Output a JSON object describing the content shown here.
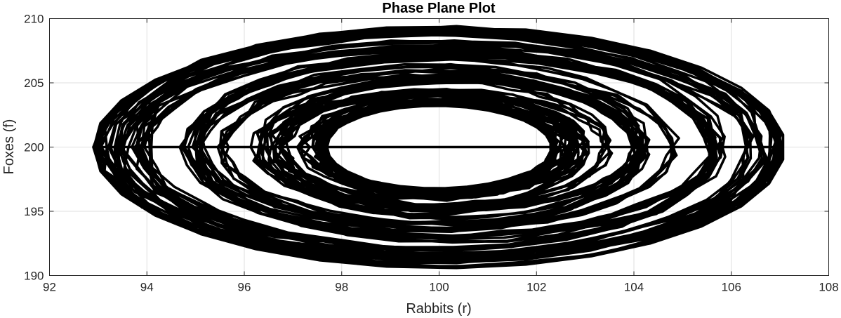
{
  "chart_data": {
    "type": "line",
    "title": "Phase Plane Plot",
    "xlabel": "Rabbits (r)",
    "ylabel": "Foxes (f)",
    "xlim": [
      92,
      108
    ],
    "ylim": [
      190,
      210
    ],
    "xticks": [
      "92",
      "94",
      "96",
      "98",
      "100",
      "102",
      "104",
      "106",
      "108"
    ],
    "yticks": [
      "190",
      "195",
      "200",
      "205",
      "210"
    ],
    "grid": true,
    "legend": "none",
    "series": [
      {
        "color": "#000000",
        "line_width": 3.5,
        "trajectory": {
          "center": [
            100,
            200
          ],
          "loops": 120,
          "points_per_loop": 31,
          "x_amplitude_range": [
            2.3,
            7.1
          ],
          "y_amplitude_range": [
            3.3,
            10.0
          ],
          "start": [
            93.9,
            195.3
          ],
          "end": [
            107.0,
            200.0
          ]
        }
      }
    ]
  }
}
